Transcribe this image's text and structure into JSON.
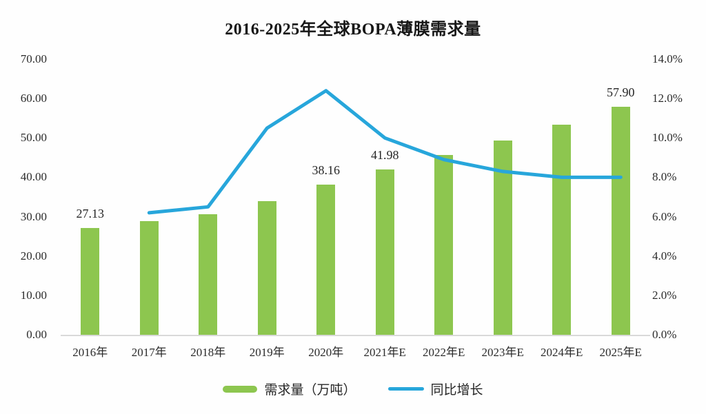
{
  "title": "2016-2025年全球BOPA薄膜需求量",
  "chart_data": {
    "type": "combo-bar-line",
    "title": "2016-2025年全球BOPA薄膜需求量",
    "categories": [
      "2016年",
      "2017年",
      "2018年",
      "2019年",
      "2020年",
      "2021年E",
      "2022年E",
      "2023年E",
      "2024年E",
      "2025年E"
    ],
    "series": [
      {
        "name": "需求量（万吨）",
        "type": "bar",
        "axis": "left",
        "color": "#8dc64f",
        "values": [
          27.13,
          28.8,
          30.7,
          33.9,
          38.16,
          41.98,
          45.6,
          49.4,
          53.4,
          57.9
        ]
      },
      {
        "name": "同比增长",
        "type": "line",
        "axis": "right",
        "color": "#27a6db",
        "values": [
          null,
          6.2,
          6.5,
          10.5,
          12.4,
          10.0,
          8.9,
          8.3,
          8.0,
          8.0
        ]
      }
    ],
    "bar_data_labels": {
      "0": "27.13",
      "4": "38.16",
      "5": "41.98",
      "9": "57.90"
    },
    "left_axis": {
      "min": 0,
      "max": 70,
      "step": 10,
      "tick_labels": [
        "0.00",
        "10.00",
        "20.00",
        "30.00",
        "40.00",
        "50.00",
        "60.00",
        "70.00"
      ]
    },
    "right_axis": {
      "min": 0,
      "max": 14,
      "step": 2,
      "tick_labels": [
        "0.0%",
        "2.0%",
        "4.0%",
        "6.0%",
        "8.0%",
        "10.0%",
        "12.0%",
        "14.0%"
      ]
    },
    "grid": false,
    "legend_position": "bottom"
  },
  "legend": {
    "bar_label": "需求量（万吨）",
    "line_label": "同比增长"
  }
}
